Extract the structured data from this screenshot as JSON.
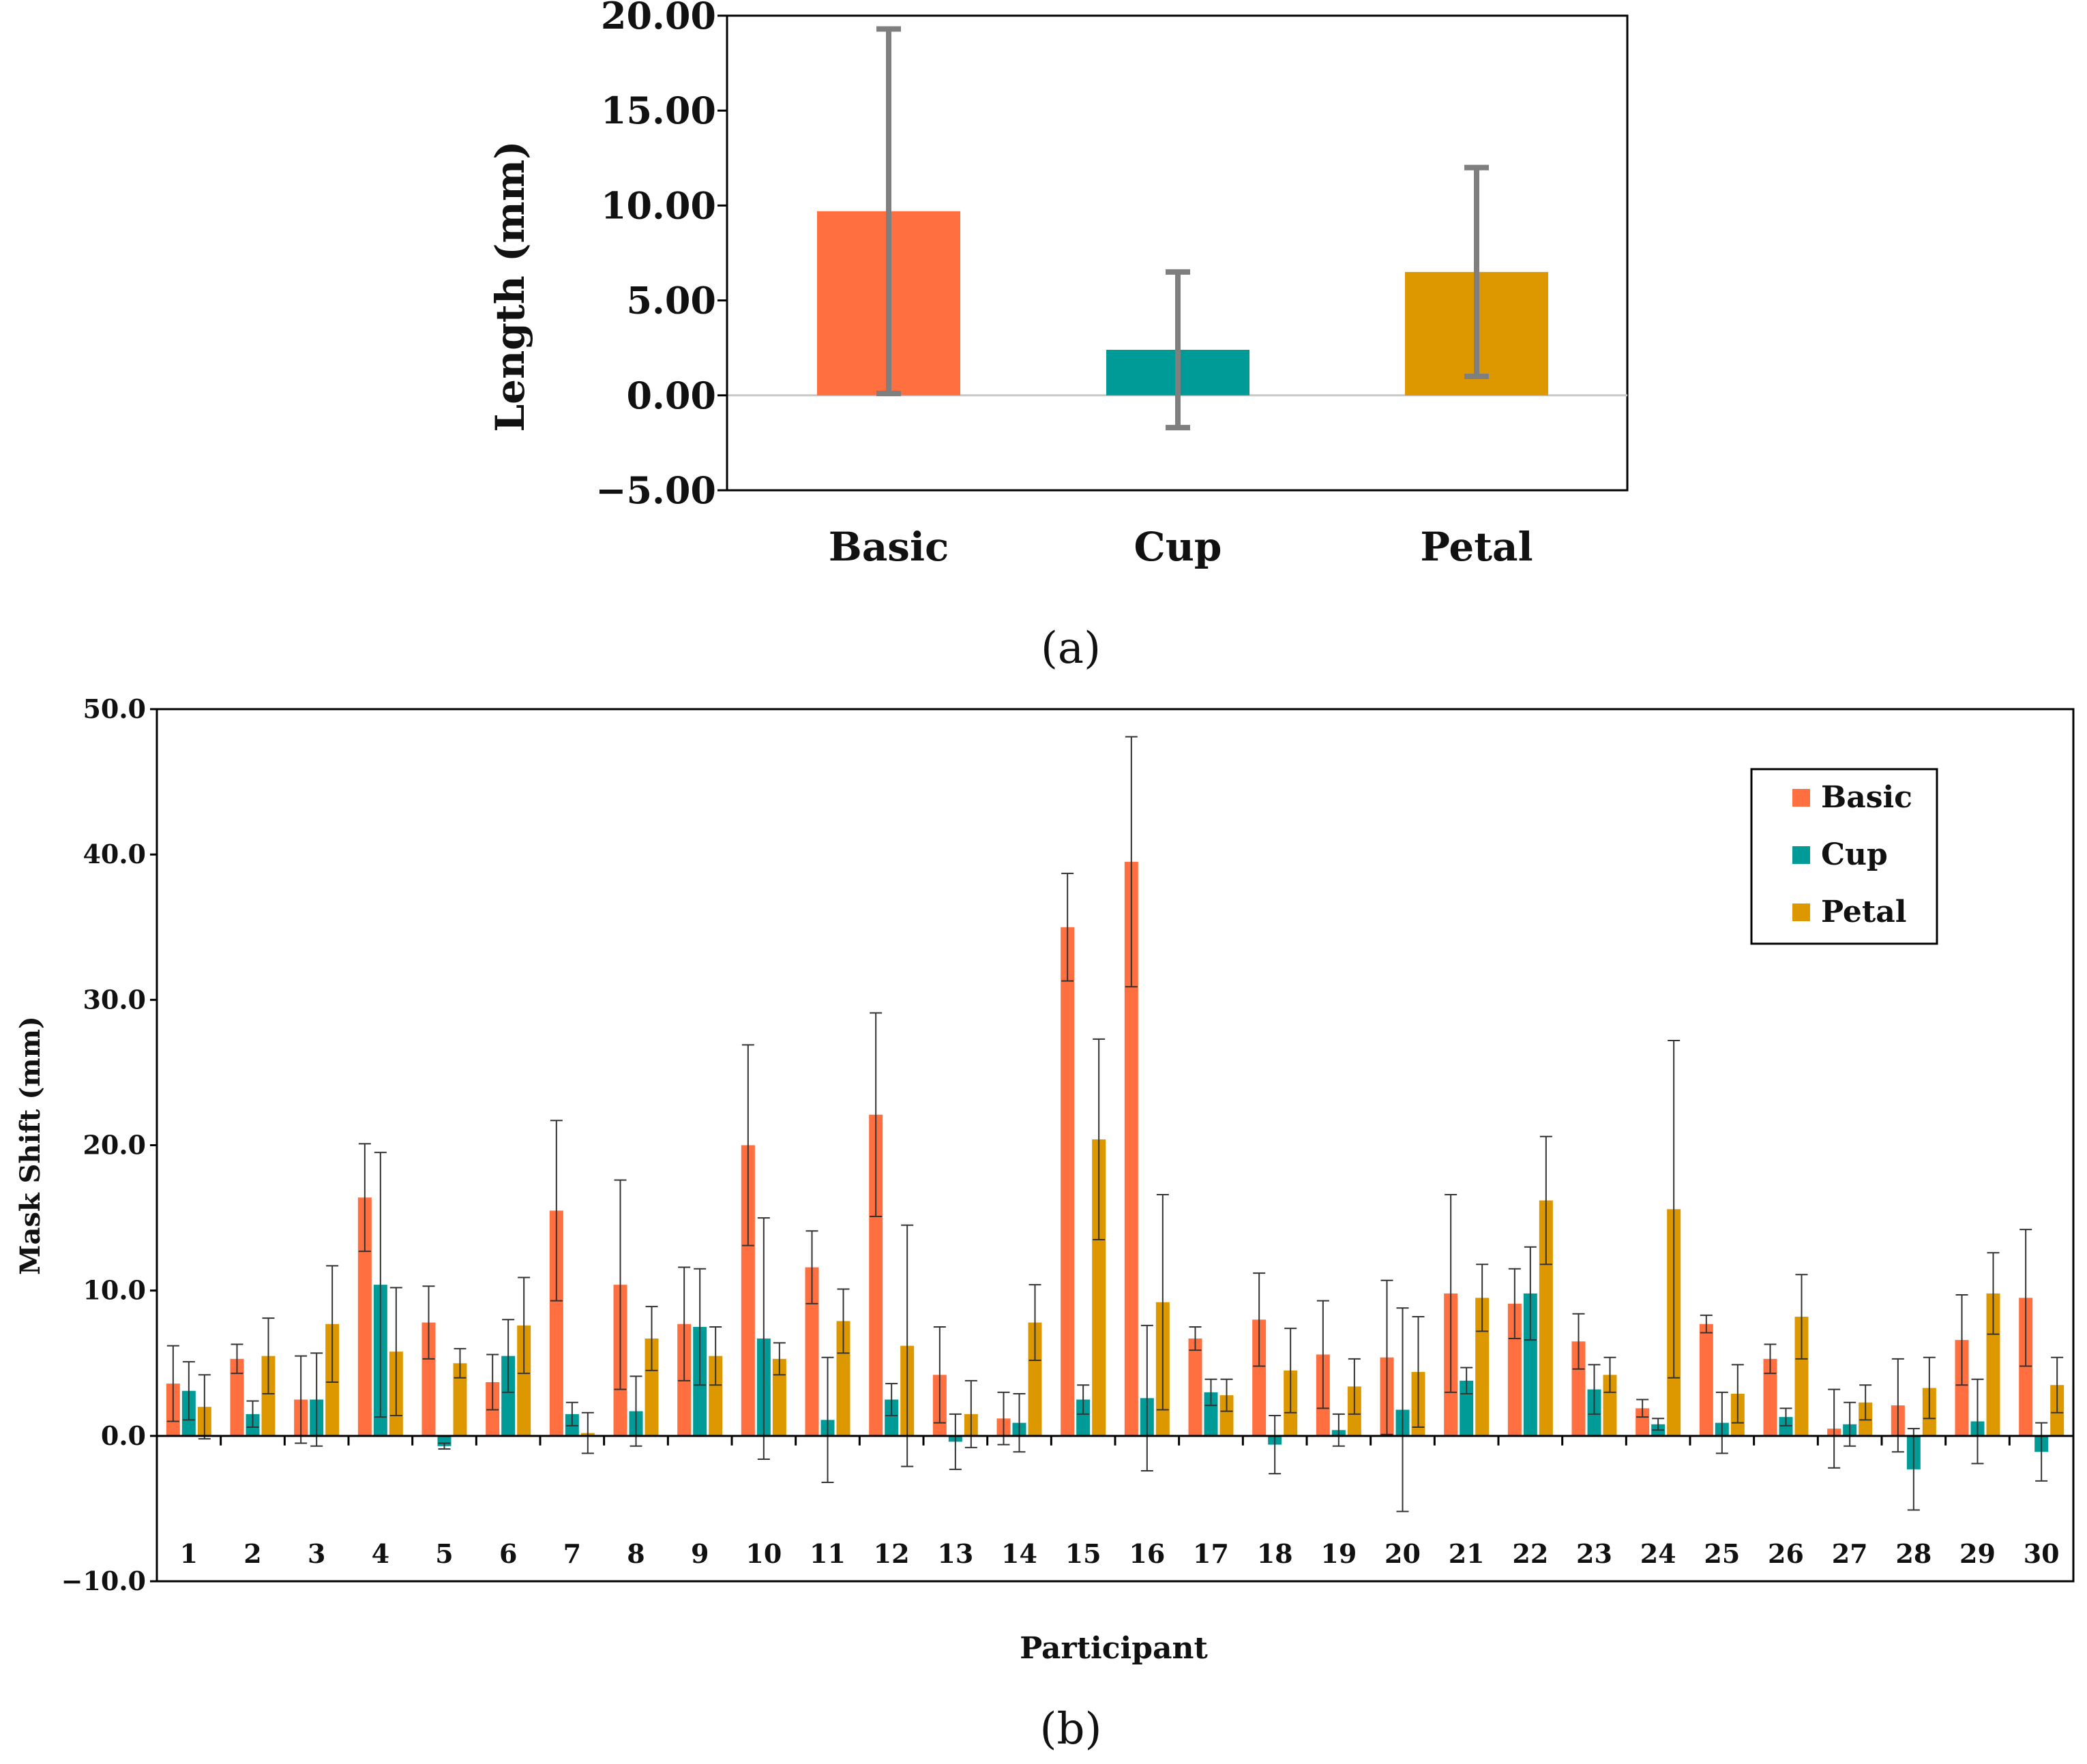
{
  "colors": {
    "basic": "#FF6F3F",
    "cup": "#009B96",
    "petal": "#DD9800",
    "error_a": "#7F7F7F",
    "error_b": "#333333"
  },
  "chart_data": [
    {
      "type": "bar",
      "panel_label": "(a)",
      "title": "",
      "xlabel": "",
      "ylabel": "Length (mm)",
      "categories": [
        "Basic",
        "Cup",
        "Petal"
      ],
      "values": [
        9.7,
        2.4,
        6.5
      ],
      "errors": [
        9.6,
        4.1,
        5.5
      ],
      "ylim": [
        -5,
        20
      ],
      "yticks": [
        "20.00",
        "15.00",
        "10.00",
        "5.00",
        "0.00",
        "−5.00"
      ],
      "ytick_values": [
        20,
        15,
        10,
        5,
        0,
        -5
      ]
    },
    {
      "type": "bar",
      "panel_label": "(b)",
      "title": "",
      "xlabel": "Participant",
      "ylabel": "Mask Shift (mm)",
      "categories": [
        "1",
        "2",
        "3",
        "4",
        "5",
        "6",
        "7",
        "8",
        "9",
        "10",
        "11",
        "12",
        "13",
        "14",
        "15",
        "16",
        "17",
        "18",
        "19",
        "20",
        "21",
        "22",
        "23",
        "24",
        "25",
        "26",
        "27",
        "28",
        "29",
        "30"
      ],
      "ylim": [
        -10,
        50
      ],
      "yticks": [
        "50.0",
        "40.0",
        "30.0",
        "20.0",
        "10.0",
        "0.0",
        "−10.0"
      ],
      "ytick_values": [
        50,
        40,
        30,
        20,
        10,
        0,
        -10
      ],
      "legend": {
        "position": "top-right",
        "entries": [
          "Basic",
          "Cup",
          "Petal"
        ]
      },
      "series": [
        {
          "name": "Basic",
          "values": [
            3.6,
            5.3,
            2.5,
            16.4,
            7.8,
            3.7,
            15.5,
            10.4,
            7.7,
            20.0,
            11.6,
            22.1,
            4.2,
            1.2,
            35.0,
            39.5,
            6.7,
            8.0,
            5.6,
            5.4,
            9.8,
            9.1,
            6.5,
            1.9,
            7.7,
            5.3,
            0.5,
            2.1,
            6.6,
            9.5
          ],
          "errors": [
            2.6,
            1.0,
            3.0,
            3.7,
            2.5,
            1.9,
            6.2,
            7.2,
            3.9,
            6.9,
            2.5,
            7.0,
            3.3,
            1.8,
            3.7,
            8.6,
            0.8,
            3.2,
            3.7,
            5.3,
            6.8,
            2.4,
            1.9,
            0.6,
            0.6,
            1.0,
            2.7,
            3.2,
            3.1,
            4.7
          ]
        },
        {
          "name": "Cup",
          "values": [
            3.1,
            1.5,
            2.5,
            10.4,
            -0.7,
            5.5,
            1.5,
            1.7,
            7.5,
            6.7,
            1.1,
            2.5,
            -0.4,
            0.9,
            2.5,
            2.6,
            3.0,
            -0.6,
            0.4,
            1.8,
            3.8,
            9.8,
            3.2,
            0.8,
            0.9,
            1.3,
            0.8,
            -2.3,
            1.0,
            -1.1
          ],
          "errors": [
            2.0,
            0.9,
            3.2,
            9.1,
            0.2,
            2.5,
            0.8,
            2.4,
            4.0,
            8.3,
            4.3,
            1.1,
            1.9,
            2.0,
            1.0,
            5.0,
            0.9,
            2.0,
            1.1,
            7.0,
            0.9,
            3.2,
            1.7,
            0.4,
            2.1,
            0.6,
            1.5,
            2.8,
            2.9,
            2.0
          ]
        },
        {
          "name": "Petal",
          "values": [
            2.0,
            5.5,
            7.7,
            5.8,
            5.0,
            7.6,
            0.2,
            6.7,
            5.5,
            5.3,
            7.9,
            6.2,
            1.5,
            7.8,
            20.4,
            9.2,
            2.8,
            4.5,
            3.4,
            4.4,
            9.5,
            16.2,
            4.2,
            15.6,
            2.9,
            8.2,
            2.3,
            3.3,
            9.8,
            3.5
          ],
          "errors": [
            2.2,
            2.6,
            4.0,
            4.4,
            1.0,
            3.3,
            1.4,
            2.2,
            2.0,
            1.1,
            2.2,
            8.3,
            2.3,
            2.6,
            6.9,
            7.4,
            1.1,
            2.9,
            1.9,
            3.8,
            2.3,
            4.4,
            1.2,
            11.6,
            2.0,
            2.9,
            1.2,
            2.1,
            2.8,
            1.9
          ]
        }
      ]
    }
  ]
}
